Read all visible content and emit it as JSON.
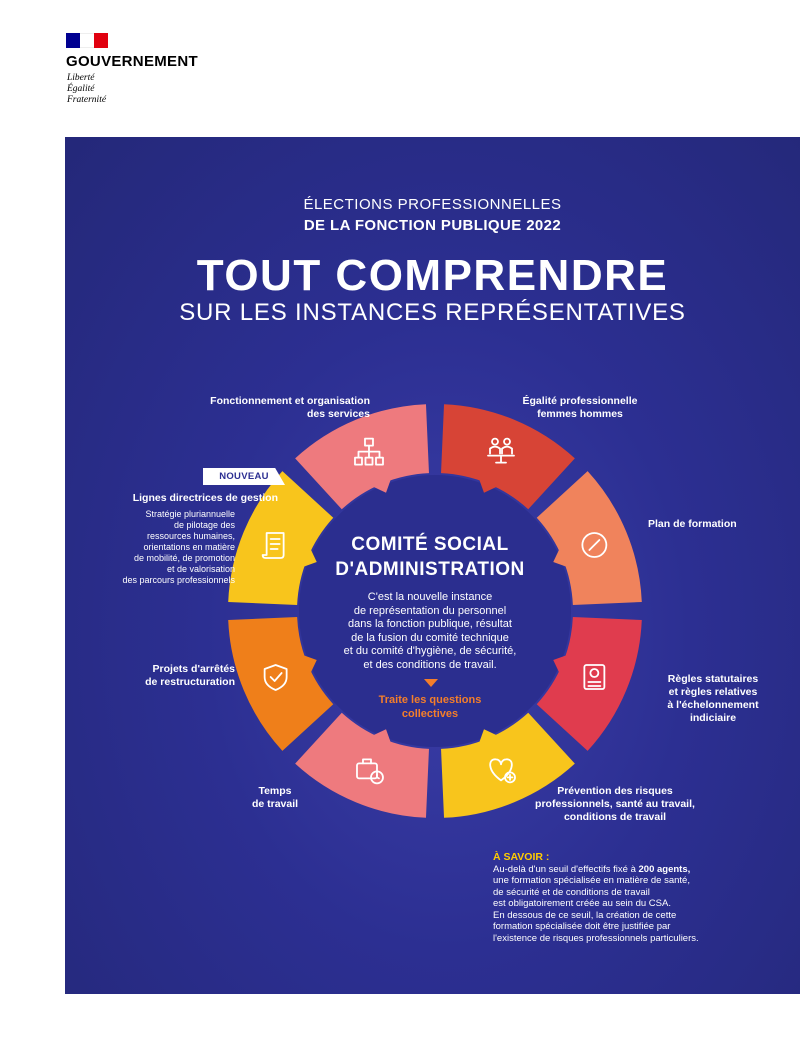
{
  "header": {
    "brand": "GOUVERNEMENT",
    "motto": [
      "Liberté",
      "Égalité",
      "Fraternité"
    ],
    "flag_colors": [
      "#000091",
      "#ffffff",
      "#e1000f"
    ]
  },
  "poster": {
    "supertitle_line1": "ÉLECTIONS PROFESSIONNELLES",
    "supertitle_line2": "DE LA FONCTION PUBLIQUE 2022",
    "title": "TOUT COMPRENDRE",
    "subtitle": "SUR LES INSTANCES REPRÉSENTATIVES",
    "background": "#2c2f92"
  },
  "center": {
    "title_line1": "COMITÉ SOCIAL",
    "title_line2": "D'ADMINISTRATION",
    "body": [
      "C'est la nouvelle instance",
      "de représentation du personnel",
      "dans la fonction publique, résultat",
      "de la fusion du comité technique",
      "et du comité d'hygiène, de sécurité,",
      "et des conditions de travail."
    ],
    "link": [
      "Traite les questions",
      "collectives"
    ],
    "link_color": "#f47e2a"
  },
  "segments": [
    {
      "label": [
        "Égalité professionnelle",
        "femmes hommes"
      ],
      "color": "#d74436",
      "icon": "people-scale-icon"
    },
    {
      "label": [
        "Plan de formation"
      ],
      "color": "#f0835c",
      "icon": "compass-icon"
    },
    {
      "label": [
        "Règles statutaires",
        "et règles relatives",
        "à l'échelonnement",
        "indiciaire"
      ],
      "color": "#e03c4e",
      "icon": "certificate-icon"
    },
    {
      "label": [
        "Prévention des risques",
        "professionnels, santé au travail,",
        "conditions de travail"
      ],
      "color": "#f8c51c",
      "icon": "heart-plus-icon"
    },
    {
      "label": [
        "Temps",
        "de travail"
      ],
      "color": "#ee7a7e",
      "icon": "briefcase-clock-icon"
    },
    {
      "label": [
        "Projets d'arrêtés",
        "de restructuration"
      ],
      "color": "#ef7f1a",
      "icon": "shield-check-icon"
    },
    {
      "label": [
        "Lignes directrices de gestion"
      ],
      "color": "#f8c51c",
      "icon": "scroll-icon",
      "badge": "NOUVEAU",
      "description": [
        "Stratégie pluriannuelle",
        "de pilotage des",
        "ressources humaines,",
        "orientations en matière",
        "de mobilité, de promotion",
        "et de valorisation",
        "des parcours professionnels"
      ]
    },
    {
      "label": [
        "Fonctionnement et organisation",
        "des services"
      ],
      "color": "#ee7a7e",
      "icon": "org-chart-icon"
    }
  ],
  "savoir": {
    "heading": "À SAVOIR :",
    "line1_before": "Au-delà d'un seuil d'effectifs fixé à ",
    "line1_bold": "200 agents,",
    "lines": [
      "une formation spécialisée en matière de santé,",
      "de sécurité et de conditions de travail",
      "est obligatoirement créée au sein du CSA.",
      "En dessous de ce seuil, la création de cette",
      "formation spécialisée doit être justifiée par",
      "l'existence de risques professionnels particuliers."
    ]
  }
}
